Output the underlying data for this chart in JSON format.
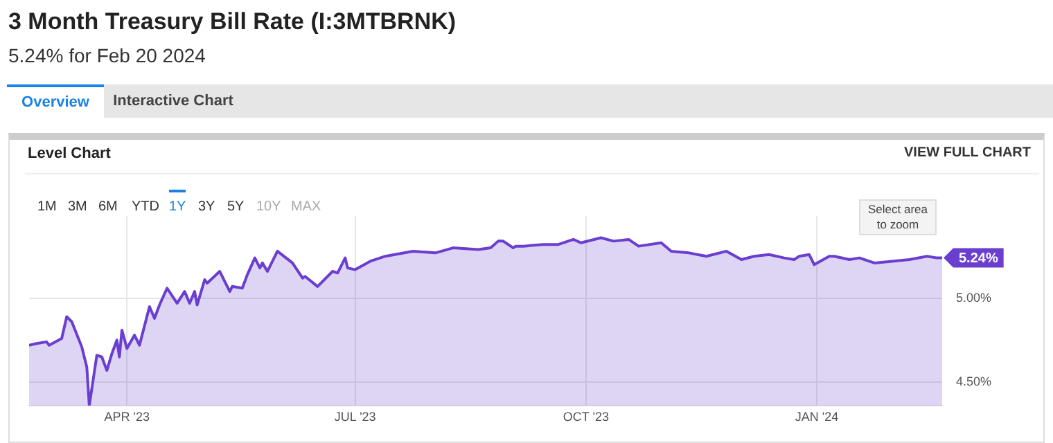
{
  "chart_data": {
    "type": "area",
    "title": "3 Month Treasury Bill Rate (I:3MTBRNK)",
    "subtitle": "5.24% for Feb 20 2024",
    "annotations": [
      "Overview",
      "Interactive Chart",
      "Level Chart",
      "VIEW FULL CHART",
      "1M",
      "3M",
      "6M",
      "YTD",
      "1Y",
      "3Y",
      "5Y",
      "10Y",
      "MAX",
      "Select area to zoom",
      {
        "text": "5.24%",
        "x": "2024-02-20",
        "y": 5.24
      }
    ],
    "series": [
      {
        "color": "#6a3fd0",
        "x": [
          "2023-02-21",
          "2023-02-24",
          "2023-02-28",
          "2023-03-01",
          "2023-03-06",
          "2023-03-08",
          "2023-03-10",
          "2023-03-14",
          "2023-03-16",
          "2023-03-17",
          "2023-03-20",
          "2023-03-22",
          "2023-03-24",
          "2023-03-26",
          "2023-03-28",
          "2023-03-29",
          "2023-03-30",
          "2023-04-01",
          "2023-04-04",
          "2023-04-06",
          "2023-04-10",
          "2023-04-12",
          "2023-04-14",
          "2023-04-17",
          "2023-04-21",
          "2023-04-24",
          "2023-04-26",
          "2023-04-28",
          "2023-04-29",
          "2023-05-02",
          "2023-05-03",
          "2023-05-08",
          "2023-05-12",
          "2023-05-13",
          "2023-05-17",
          "2023-05-19",
          "2023-05-22",
          "2023-05-24",
          "2023-05-25",
          "2023-05-27",
          "2023-05-31",
          "2023-06-06",
          "2023-06-10",
          "2023-06-11",
          "2023-06-16",
          "2023-06-22",
          "2023-06-24",
          "2023-06-27",
          "2023-06-28",
          "2023-07-01",
          "2023-07-07",
          "2023-07-13",
          "2023-07-24",
          "2023-08-02",
          "2023-08-09",
          "2023-08-19",
          "2023-08-24",
          "2023-08-27",
          "2023-08-29",
          "2023-09-02",
          "2023-09-03",
          "2023-09-06",
          "2023-09-14",
          "2023-09-20",
          "2023-09-26",
          "2023-09-29",
          "2023-10-07",
          "2023-10-12",
          "2023-10-18",
          "2023-10-22",
          "2023-10-31",
          "2023-11-04",
          "2023-11-11",
          "2023-11-18",
          "2023-11-26",
          "2023-12-02",
          "2023-12-07",
          "2023-12-13",
          "2023-12-19",
          "2023-12-23",
          "2023-12-25",
          "2023-12-29",
          "2023-12-31",
          "2024-01-06",
          "2024-01-08",
          "2024-01-14",
          "2024-01-18",
          "2024-01-24",
          "2024-01-31",
          "2024-02-07",
          "2024-02-14",
          "2024-02-18",
          "2024-02-20"
        ],
        "values": [
          4.72,
          4.73,
          4.74,
          4.72,
          4.76,
          4.89,
          4.86,
          4.71,
          4.59,
          4.36,
          4.66,
          4.65,
          4.57,
          4.67,
          4.75,
          4.65,
          4.81,
          4.7,
          4.78,
          4.72,
          4.95,
          4.88,
          4.96,
          5.06,
          4.97,
          5.04,
          4.97,
          5.04,
          4.96,
          5.11,
          5.09,
          5.16,
          5.04,
          5.07,
          5.06,
          5.14,
          5.24,
          5.18,
          5.21,
          5.16,
          5.28,
          5.21,
          5.12,
          5.13,
          5.07,
          5.16,
          5.15,
          5.24,
          5.18,
          5.17,
          5.22,
          5.25,
          5.28,
          5.27,
          5.3,
          5.29,
          5.3,
          5.34,
          5.34,
          5.3,
          5.31,
          5.31,
          5.32,
          5.32,
          5.35,
          5.33,
          5.36,
          5.34,
          5.35,
          5.31,
          5.33,
          5.28,
          5.27,
          5.25,
          5.28,
          5.23,
          5.25,
          5.26,
          5.24,
          5.23,
          5.25,
          5.26,
          5.2,
          5.25,
          5.25,
          5.23,
          5.24,
          5.21,
          5.22,
          5.23,
          5.25,
          5.24,
          5.24
        ]
      }
    ],
    "xlim": [
      "2023-02-21",
      "2024-02-20"
    ],
    "xticks": [
      {
        "value": "2023-04-01",
        "label": "APR '23"
      },
      {
        "value": "2023-07-01",
        "label": "JUL '23"
      },
      {
        "value": "2023-10-01",
        "label": "OCT '23"
      },
      {
        "value": "2024-01-01",
        "label": "JAN '24"
      }
    ],
    "ylim": [
      4.36,
      5.49
    ],
    "yticks": [
      {
        "value": 4.5,
        "label": "4.50%"
      },
      {
        "value": 5.0,
        "label": "5.00%"
      }
    ],
    "grid": true,
    "legend": false,
    "marker": "none",
    "line_style": "solid"
  }
}
